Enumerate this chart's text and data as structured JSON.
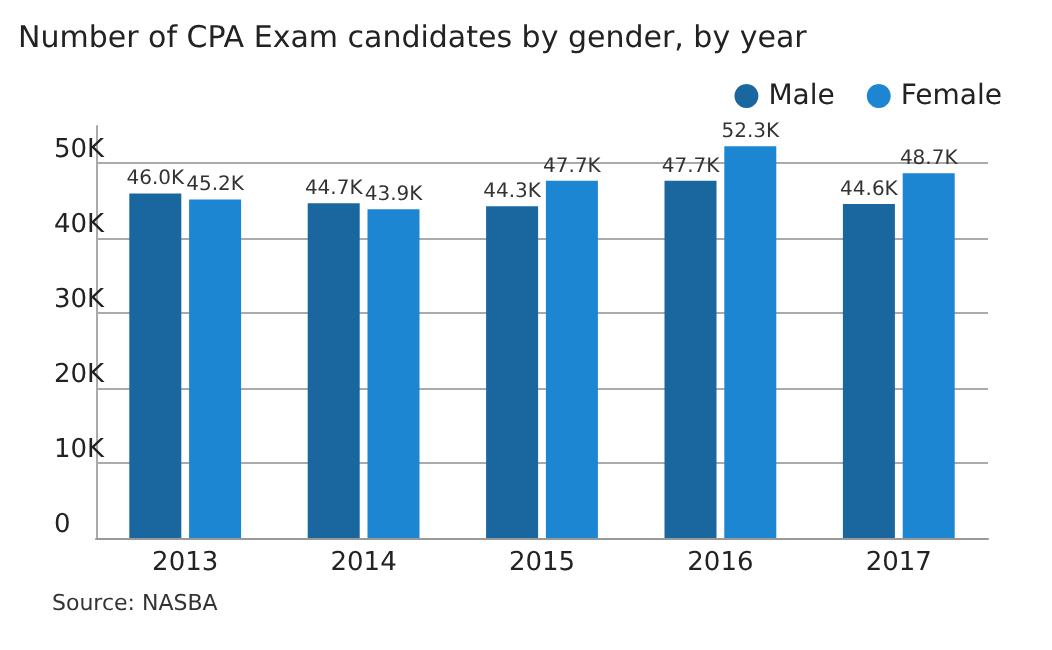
{
  "chart_data": {
    "type": "bar",
    "title": "Number of CPA Exam candidates by gender, by year",
    "categories": [
      "2013",
      "2014",
      "2015",
      "2016",
      "2017"
    ],
    "series": [
      {
        "name": "Male",
        "color": "#1a67a0",
        "values": [
          46000,
          44700,
          44300,
          47700,
          44600
        ],
        "value_labels": [
          "46.0K",
          "44.7K",
          "44.3K",
          "47.7K",
          "44.6K"
        ]
      },
      {
        "name": "Female",
        "color": "#1c86d2",
        "values": [
          45200,
          43900,
          47700,
          52300,
          48700
        ],
        "value_labels": [
          "45.2K",
          "43.9K",
          "47.7K",
          "52.3K",
          "48.7K"
        ]
      }
    ],
    "ylim": [
      0,
      55000
    ],
    "yticks": [
      0,
      {
        "value": 10000,
        "label": "10K"
      },
      {
        "value": 20000,
        "label": "20K"
      },
      {
        "value": 30000,
        "label": "30K"
      },
      {
        "value": 40000,
        "label": "40K"
      },
      {
        "value": 50000,
        "label": "50K"
      }
    ],
    "grid": "y",
    "legend": "top right",
    "annotations": [
      "Source: NASBA"
    ]
  }
}
